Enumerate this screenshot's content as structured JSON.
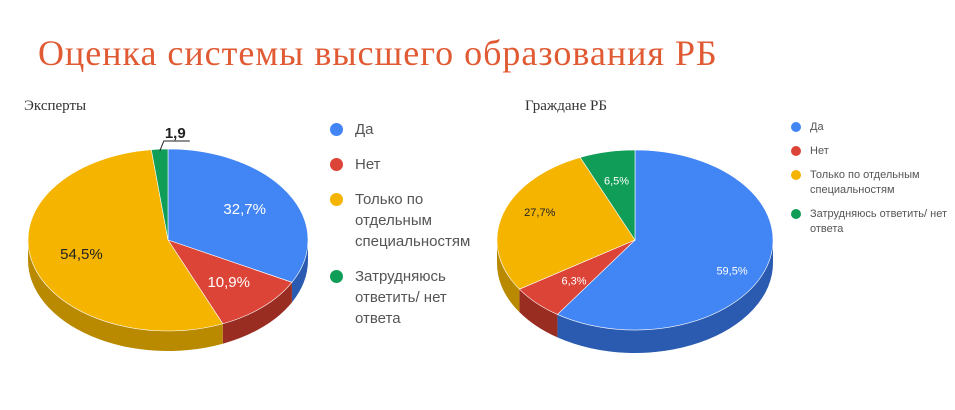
{
  "title": "Оценка системы высшего образования РБ",
  "colors": {
    "title": "#e05a33",
    "series": [
      "#4285f4",
      "#db4437",
      "#f4b400",
      "#0f9d58"
    ],
    "sides": [
      "#2a5bb0",
      "#9a2d22",
      "#b98a00",
      "#0a6e3e"
    ]
  },
  "legend": {
    "left": [
      "Да",
      "Нет",
      "Только по отдельным специальностям",
      "Затрудняюсь ответить/ нет ответа"
    ],
    "right": [
      "Да",
      "Нет",
      "Только по отдельным специальностям",
      "Затрудняюсь ответить/ нет ответа"
    ]
  },
  "chart_data": [
    {
      "type": "pie",
      "title": "Эксперты",
      "categories": [
        "Да",
        "Нет",
        "Только по отдельным специальностям",
        "Затрудняюсь ответить/ нет ответа"
      ],
      "values": [
        32.7,
        10.9,
        54.5,
        1.9
      ],
      "labels": [
        "32,7%",
        "10,9%",
        "54,5%",
        "1,9"
      ],
      "legend": "right"
    },
    {
      "type": "pie",
      "title": "Граждане РБ",
      "categories": [
        "Да",
        "Нет",
        "Только по отдельным специальностям",
        "Затрудняюсь ответить/ нет ответа"
      ],
      "values": [
        59.5,
        6.3,
        27.7,
        6.5
      ],
      "labels": [
        "59,5%",
        "6,3%",
        "27,7%",
        "6,5%"
      ],
      "legend": "right"
    }
  ]
}
